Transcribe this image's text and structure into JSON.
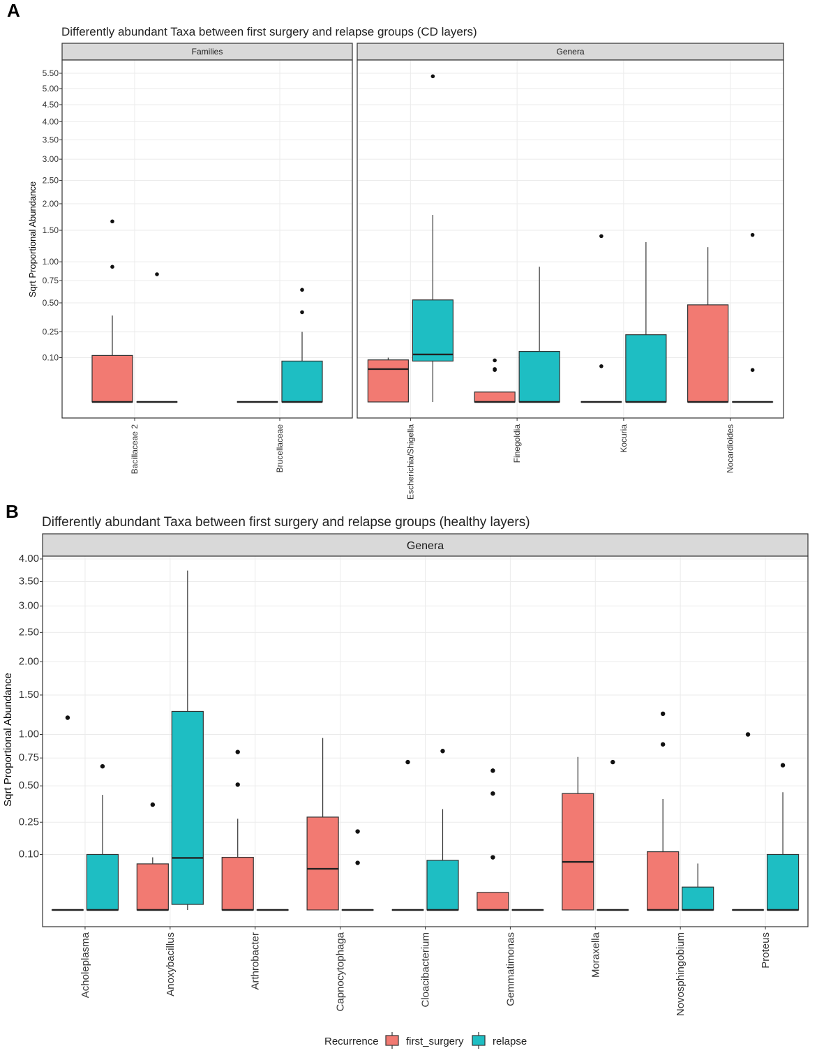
{
  "colors": {
    "first_surgery": "#F27A72",
    "relapse": "#1EBEC3",
    "strip_fill": "#D9D9D9",
    "grid": "#EBEBEB",
    "frame": "#333333"
  },
  "legend": {
    "title": "Recurrence",
    "items": [
      {
        "key": "first_surgery",
        "label": "first_surgery"
      },
      {
        "key": "relapse",
        "label": "relapse"
      }
    ]
  },
  "chart_data": [
    {
      "type": "boxplot",
      "panel_label": "A",
      "title": "Differently abundant Taxa between first surgery and relapse groups (CD layers)",
      "ylabel": "Sqrt Proportional Abundance",
      "y_scale": "sqrt",
      "yticks": [
        0.1,
        0.25,
        0.5,
        0.75,
        1.0,
        1.5,
        2.0,
        2.5,
        3.0,
        3.5,
        4.0,
        4.5,
        5.0,
        5.5
      ],
      "ytick_labels": [
        "0.10",
        "0.25",
        "0.50",
        "0.75",
        "1.00",
        "1.50",
        "2.00",
        "2.50",
        "3.00",
        "3.50",
        "4.00",
        "4.50",
        "5.00",
        "5.50"
      ],
      "ylim": [
        -0.03,
        5.7
      ],
      "facets": [
        {
          "label": "Families",
          "categories": [
            {
              "name": "Bacillaceae 2",
              "groups": [
                {
                  "group": "first_surgery",
                  "q1": 0,
                  "median": 0,
                  "q3": 0.11,
                  "whisker_low": 0,
                  "whisker_high": 0.38,
                  "outliers": [
                    0.93,
                    1.66
                  ]
                },
                {
                  "group": "relapse",
                  "q1": 0,
                  "median": 0,
                  "q3": 0,
                  "whisker_low": 0,
                  "whisker_high": 0,
                  "outliers": [
                    0.83
                  ]
                }
              ]
            },
            {
              "name": "Brucellaceae",
              "groups": [
                {
                  "group": "first_surgery",
                  "q1": 0,
                  "median": 0,
                  "q3": 0,
                  "whisker_low": 0,
                  "whisker_high": 0,
                  "outliers": []
                },
                {
                  "group": "relapse",
                  "q1": 0,
                  "median": 0,
                  "q3": 0.085,
                  "whisker_low": 0,
                  "whisker_high": 0.25,
                  "outliers": [
                    0.41,
                    0.64
                  ]
                }
              ]
            }
          ]
        },
        {
          "label": "Genera",
          "categories": [
            {
              "name": "Escherichia/Shigella",
              "groups": [
                {
                  "group": "first_surgery",
                  "q1": 0,
                  "median": 0.055,
                  "q3": 0.09,
                  "whisker_low": 0,
                  "whisker_high": 0.1,
                  "outliers": []
                },
                {
                  "group": "relapse",
                  "q1": 0.085,
                  "median": 0.115,
                  "q3": 0.53,
                  "whisker_low": 0,
                  "whisker_high": 1.78,
                  "outliers": [
                    5.4
                  ]
                }
              ]
            },
            {
              "name": "Finegoldia",
              "groups": [
                {
                  "group": "first_surgery",
                  "q1": 0,
                  "median": 0,
                  "q3": 0.005,
                  "whisker_low": 0,
                  "whisker_high": 0.005,
                  "outliers": [
                    0.052,
                    0.055,
                    0.088
                  ]
                },
                {
                  "group": "relapse",
                  "q1": 0,
                  "median": 0,
                  "q3": 0.13,
                  "whisker_low": 0,
                  "whisker_high": 0.93,
                  "outliers": []
                }
              ]
            },
            {
              "name": "Kocuria",
              "groups": [
                {
                  "group": "first_surgery",
                  "q1": 0,
                  "median": 0,
                  "q3": 0,
                  "whisker_low": 0,
                  "whisker_high": 0,
                  "outliers": [
                    0.065,
                    1.4
                  ]
                },
                {
                  "group": "relapse",
                  "q1": 0,
                  "median": 0,
                  "q3": 0.23,
                  "whisker_low": 0,
                  "whisker_high": 1.3,
                  "outliers": []
                }
              ]
            },
            {
              "name": "Nocardioides",
              "groups": [
                {
                  "group": "first_surgery",
                  "q1": 0,
                  "median": 0,
                  "q3": 0.48,
                  "whisker_low": 0,
                  "whisker_high": 1.22,
                  "outliers": []
                },
                {
                  "group": "relapse",
                  "q1": 0,
                  "median": 0,
                  "q3": 0,
                  "whisker_low": 0,
                  "whisker_high": 0,
                  "outliers": [
                    0.052,
                    1.42
                  ]
                }
              ]
            }
          ]
        }
      ]
    },
    {
      "type": "boxplot",
      "panel_label": "B",
      "title": "Differently abundant Taxa between first surgery and relapse groups (healthy layers)",
      "ylabel": "Sqrt Proportional Abundance",
      "y_scale": "sqrt",
      "yticks": [
        0.1,
        0.25,
        0.5,
        0.75,
        1.0,
        1.5,
        2.0,
        2.5,
        3.0,
        3.5,
        4.0
      ],
      "ytick_labels": [
        "0.10",
        "0.25",
        "0.50",
        "0.75",
        "1.00",
        "1.50",
        "2.00",
        "2.50",
        "3.00",
        "3.50",
        "4.00"
      ],
      "ylim": [
        -0.03,
        4.0
      ],
      "facets": [
        {
          "label": "Genera",
          "categories": [
            {
              "name": "Acholeplasma",
              "groups": [
                {
                  "group": "first_surgery",
                  "q1": 0,
                  "median": 0,
                  "q3": 0,
                  "whisker_low": 0,
                  "whisker_high": 0,
                  "outliers": [
                    1.2
                  ]
                },
                {
                  "group": "relapse",
                  "q1": 0,
                  "median": 0,
                  "q3": 0.1,
                  "whisker_low": 0,
                  "whisker_high": 0.43,
                  "outliers": [
                    0.67
                  ]
                }
              ]
            },
            {
              "name": "Anoxybacillus",
              "groups": [
                {
                  "group": "first_surgery",
                  "q1": 0,
                  "median": 0,
                  "q3": 0.069,
                  "whisker_low": 0,
                  "whisker_high": 0.09,
                  "outliers": [
                    0.36
                  ]
                },
                {
                  "group": "relapse",
                  "q1": 0.001,
                  "median": 0.088,
                  "q3": 1.28,
                  "whisker_low": 0,
                  "whisker_high": 3.74,
                  "outliers": []
                }
              ]
            },
            {
              "name": "Arthrobacter",
              "groups": [
                {
                  "group": "first_surgery",
                  "q1": 0,
                  "median": 0,
                  "q3": 0.09,
                  "whisker_low": 0,
                  "whisker_high": 0.27,
                  "outliers": [
                    0.51,
                    0.81
                  ]
                },
                {
                  "group": "relapse",
                  "q1": 0,
                  "median": 0,
                  "q3": 0,
                  "whisker_low": 0,
                  "whisker_high": 0,
                  "outliers": []
                }
              ]
            },
            {
              "name": "Capnocytophaga",
              "groups": [
                {
                  "group": "first_surgery",
                  "q1": 0,
                  "median": 0.055,
                  "q3": 0.28,
                  "whisker_low": 0,
                  "whisker_high": 0.96,
                  "outliers": []
                },
                {
                  "group": "relapse",
                  "q1": 0,
                  "median": 0,
                  "q3": 0,
                  "whisker_low": 0,
                  "whisker_high": 0,
                  "outliers": [
                    0.072,
                    0.2
                  ]
                }
              ]
            },
            {
              "name": "Cloacibacterium",
              "groups": [
                {
                  "group": "first_surgery",
                  "q1": 0,
                  "median": 0,
                  "q3": 0,
                  "whisker_low": 0,
                  "whisker_high": 0,
                  "outliers": [
                    0.71
                  ]
                },
                {
                  "group": "relapse",
                  "q1": 0,
                  "median": 0,
                  "q3": 0.08,
                  "whisker_low": 0,
                  "whisker_high": 0.33,
                  "outliers": [
                    0.82
                  ]
                }
              ]
            },
            {
              "name": "Gemmatimonas",
              "groups": [
                {
                  "group": "first_surgery",
                  "q1": 0,
                  "median": 0,
                  "q3": 0.01,
                  "whisker_low": 0,
                  "whisker_high": 0.01,
                  "outliers": [
                    0.09,
                    0.44,
                    0.63
                  ]
                },
                {
                  "group": "relapse",
                  "q1": 0,
                  "median": 0,
                  "q3": 0,
                  "whisker_low": 0,
                  "whisker_high": 0,
                  "outliers": []
                }
              ]
            },
            {
              "name": "Moraxella",
              "groups": [
                {
                  "group": "first_surgery",
                  "q1": 0,
                  "median": 0.075,
                  "q3": 0.44,
                  "whisker_low": 0,
                  "whisker_high": 0.76,
                  "outliers": []
                },
                {
                  "group": "relapse",
                  "q1": 0,
                  "median": 0,
                  "q3": 0,
                  "whisker_low": 0,
                  "whisker_high": 0,
                  "outliers": [
                    0.71
                  ]
                }
              ]
            },
            {
              "name": "Novosphingobium",
              "groups": [
                {
                  "group": "first_surgery",
                  "q1": 0,
                  "median": 0,
                  "q3": 0.11,
                  "whisker_low": 0,
                  "whisker_high": 0.4,
                  "outliers": [
                    0.89,
                    1.25
                  ]
                },
                {
                  "group": "relapse",
                  "q1": 0,
                  "median": 0,
                  "q3": 0.017,
                  "whisker_low": 0,
                  "whisker_high": 0.07,
                  "outliers": []
                }
              ]
            },
            {
              "name": "Proteus",
              "groups": [
                {
                  "group": "first_surgery",
                  "q1": 0,
                  "median": 0,
                  "q3": 0,
                  "whisker_low": 0,
                  "whisker_high": 0,
                  "outliers": [
                    1.0
                  ]
                },
                {
                  "group": "relapse",
                  "q1": 0,
                  "median": 0,
                  "q3": 0.1,
                  "whisker_low": 0,
                  "whisker_high": 0.45,
                  "outliers": [
                    0.68
                  ]
                }
              ]
            }
          ]
        }
      ]
    }
  ]
}
